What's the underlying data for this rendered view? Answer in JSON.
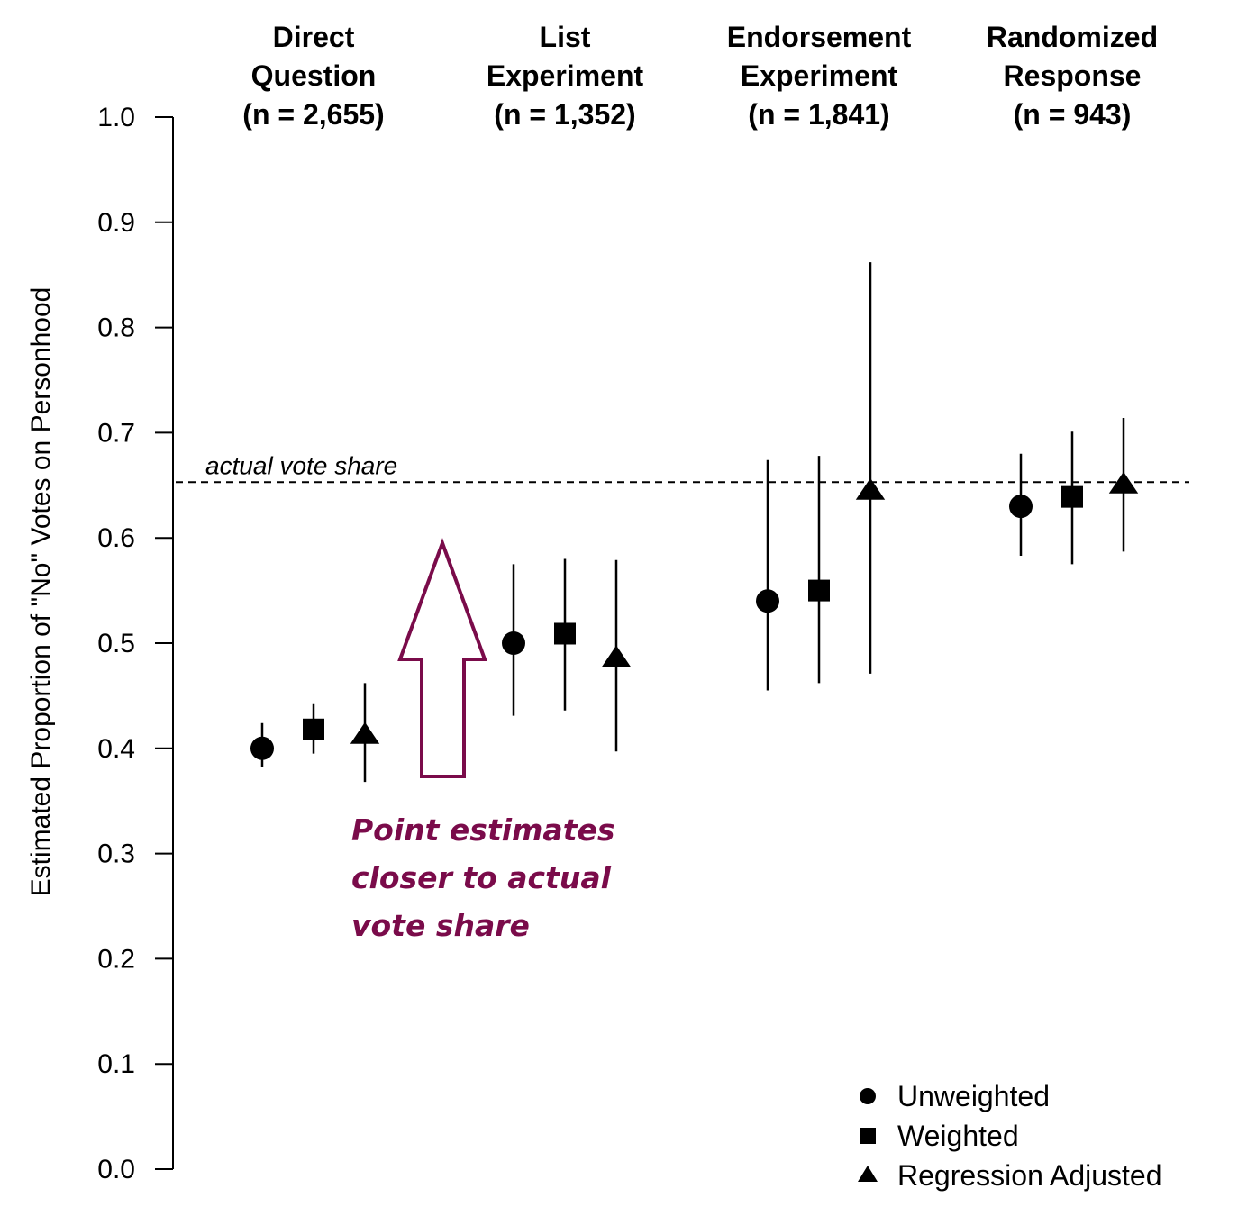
{
  "chart_data": {
    "type": "scatter",
    "ylabel": "Estimated Proportion of \"No\" Votes on Personhood",
    "ylim": [
      0,
      1
    ],
    "yticks": [
      "0.0",
      "0.1",
      "0.2",
      "0.3",
      "0.4",
      "0.5",
      "0.6",
      "0.7",
      "0.8",
      "0.9",
      "1.0"
    ],
    "grid": false,
    "groups": [
      {
        "title": [
          "Direct",
          "Question",
          "(n = 2,655)"
        ]
      },
      {
        "title": [
          "List",
          "Experiment",
          "(n = 1,352)"
        ]
      },
      {
        "title": [
          "Endorsement",
          "Experiment",
          "(n = 1,841)"
        ]
      },
      {
        "title": [
          "Randomized",
          "Response",
          "(n = 943)"
        ]
      }
    ],
    "series": [
      {
        "name": "Unweighted",
        "marker": "circle",
        "estimates": [
          0.4,
          0.5,
          0.54,
          0.63
        ],
        "ci_low": [
          0.382,
          0.431,
          0.455,
          0.583
        ],
        "ci_high": [
          0.424,
          0.575,
          0.674,
          0.68
        ]
      },
      {
        "name": "Weighted",
        "marker": "square",
        "estimates": [
          0.418,
          0.509,
          0.55,
          0.639
        ],
        "ci_low": [
          0.395,
          0.436,
          0.462,
          0.575
        ],
        "ci_high": [
          0.442,
          0.58,
          0.678,
          0.701
        ]
      },
      {
        "name": "Regression Adjusted",
        "marker": "triangle",
        "estimates": [
          0.412,
          0.485,
          0.644,
          0.65
        ],
        "ci_low": [
          0.368,
          0.397,
          0.471,
          0.587
        ],
        "ci_high": [
          0.462,
          0.579,
          0.862,
          0.714
        ]
      }
    ],
    "reference_line": {
      "value": 0.653,
      "label": "actual vote share",
      "style": "dashed"
    },
    "annotation": {
      "lines": [
        "Point estimates",
        "closer to actual",
        "vote share"
      ],
      "color": "#7a0b4a",
      "arrow": "up"
    },
    "legend_position": "bottom-right"
  }
}
